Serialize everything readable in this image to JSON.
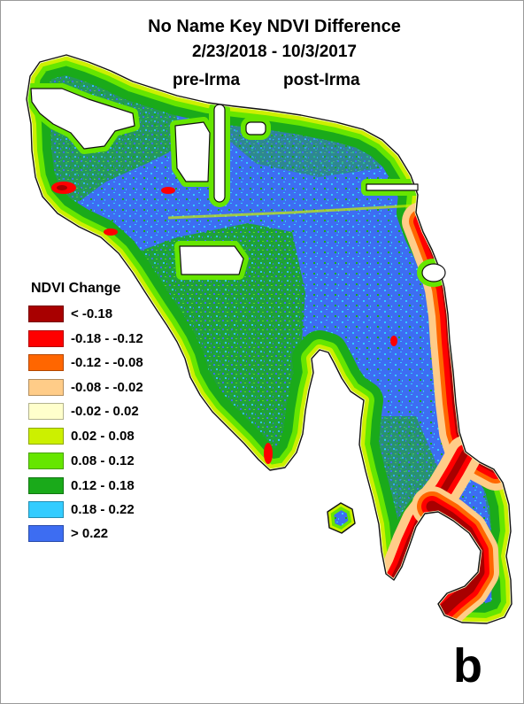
{
  "title": "No Name Key NDVI Difference",
  "date_range": "2/23/2018 - 10/3/2017",
  "period_labels": {
    "pre": "pre-Irma",
    "post": "post-Irma"
  },
  "legend": {
    "title": "NDVI Change",
    "items": [
      {
        "label": "< -0.18",
        "color": "#a80000"
      },
      {
        "label": "-0.18 - -0.12",
        "color": "#ff0000"
      },
      {
        "label": "-0.12 - -0.08",
        "color": "#ff6600"
      },
      {
        "label": "-0.08 - -0.02",
        "color": "#ffcc88"
      },
      {
        "label": "-0.02 - 0.02",
        "color": "#ffffcc"
      },
      {
        "label": "0.02 - 0.08",
        "color": "#ccf000"
      },
      {
        "label": "0.08 - 0.12",
        "color": "#66e600"
      },
      {
        "label": "0.12 - 0.18",
        "color": "#1aaa1a"
      },
      {
        "label": "0.18 - 0.22",
        "color": "#33ccff"
      },
      {
        "label": "> 0.22",
        "color": "#3d6df2"
      }
    ]
  },
  "panel_label": "b"
}
